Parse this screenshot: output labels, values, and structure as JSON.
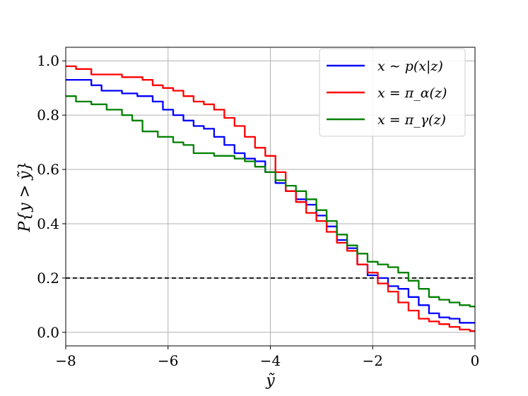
{
  "chart_data": {
    "type": "line",
    "title": "",
    "xlabel": "ỹ",
    "ylabel": "P{y > ỹ}",
    "xlim": [
      -8,
      0
    ],
    "ylim": [
      -0.05,
      1.05
    ],
    "xticks": [
      -8,
      -6,
      -4,
      -2,
      0
    ],
    "xtick_labels": [
      "−8",
      "−6",
      "−4",
      "−2",
      "0"
    ],
    "yticks": [
      0.0,
      0.2,
      0.4,
      0.6,
      0.8,
      1.0
    ],
    "ytick_labels": [
      "0.0",
      "0.2",
      "0.4",
      "0.6",
      "0.8",
      "1.0"
    ],
    "grid": true,
    "legend_position": "top-right",
    "reference_line": {
      "y": 0.2,
      "style": "dashed",
      "color": "#000000"
    },
    "series": [
      {
        "name": "x ∼ p(x|z)",
        "color": "#0000ff",
        "x": [
          -8.0,
          -7.6,
          -7.4,
          -7.2,
          -7.0,
          -6.8,
          -6.4,
          -6.2,
          -6.0,
          -5.8,
          -5.6,
          -5.4,
          -5.2,
          -5.0,
          -4.8,
          -4.6,
          -4.4,
          -4.2,
          -4.0,
          -3.8,
          -3.6,
          -3.4,
          -3.2,
          -3.0,
          -2.8,
          -2.6,
          -2.4,
          -2.2,
          -2.0,
          -1.8,
          -1.6,
          -1.4,
          -1.2,
          -1.0,
          -0.8,
          -0.6,
          -0.4,
          -0.2,
          0.0
        ],
        "values": [
          0.93,
          0.93,
          0.91,
          0.89,
          0.89,
          0.88,
          0.87,
          0.85,
          0.82,
          0.8,
          0.78,
          0.76,
          0.75,
          0.72,
          0.69,
          0.66,
          0.64,
          0.63,
          0.59,
          0.55,
          0.52,
          0.49,
          0.47,
          0.43,
          0.39,
          0.34,
          0.31,
          0.25,
          0.21,
          0.2,
          0.17,
          0.16,
          0.13,
          0.1,
          0.07,
          0.055,
          0.05,
          0.035,
          0.035
        ]
      },
      {
        "name": "x = π_α(z)",
        "color": "#ff0000",
        "x": [
          -8.0,
          -7.6,
          -7.4,
          -7.2,
          -7.0,
          -6.8,
          -6.6,
          -6.4,
          -6.2,
          -6.0,
          -5.8,
          -5.6,
          -5.4,
          -5.2,
          -5.0,
          -4.8,
          -4.6,
          -4.4,
          -4.2,
          -4.0,
          -3.8,
          -3.6,
          -3.4,
          -3.2,
          -3.0,
          -2.8,
          -2.6,
          -2.4,
          -2.2,
          -2.0,
          -1.8,
          -1.6,
          -1.4,
          -1.2,
          -1.0,
          -0.8,
          -0.6,
          -0.4,
          -0.2,
          0.0
        ],
        "values": [
          0.98,
          0.97,
          0.95,
          0.95,
          0.95,
          0.94,
          0.94,
          0.93,
          0.91,
          0.9,
          0.89,
          0.87,
          0.85,
          0.84,
          0.82,
          0.79,
          0.76,
          0.72,
          0.68,
          0.65,
          0.59,
          0.52,
          0.48,
          0.44,
          0.41,
          0.37,
          0.33,
          0.3,
          0.25,
          0.22,
          0.18,
          0.15,
          0.11,
          0.08,
          0.05,
          0.04,
          0.03,
          0.02,
          0.01,
          0.005
        ]
      },
      {
        "name": "x = π_γ(z)",
        "color": "#008000",
        "x": [
          -8.0,
          -7.6,
          -7.4,
          -7.0,
          -6.8,
          -6.6,
          -6.4,
          -6.0,
          -5.8,
          -5.6,
          -5.4,
          -5.2,
          -5.0,
          -4.8,
          -4.6,
          -4.4,
          -4.2,
          -4.0,
          -3.8,
          -3.6,
          -3.4,
          -3.2,
          -3.0,
          -2.8,
          -2.6,
          -2.4,
          -2.2,
          -2.0,
          -1.8,
          -1.6,
          -1.4,
          -1.2,
          -1.0,
          -0.8,
          -0.6,
          -0.4,
          -0.2,
          0.0
        ],
        "values": [
          0.87,
          0.85,
          0.84,
          0.82,
          0.8,
          0.78,
          0.74,
          0.72,
          0.7,
          0.69,
          0.66,
          0.66,
          0.65,
          0.65,
          0.64,
          0.63,
          0.61,
          0.59,
          0.56,
          0.54,
          0.52,
          0.49,
          0.45,
          0.41,
          0.36,
          0.32,
          0.29,
          0.26,
          0.25,
          0.24,
          0.22,
          0.19,
          0.16,
          0.13,
          0.12,
          0.11,
          0.1,
          0.095
        ]
      }
    ]
  }
}
